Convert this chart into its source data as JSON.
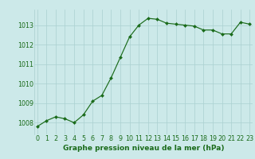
{
  "x": [
    0,
    1,
    2,
    3,
    4,
    5,
    6,
    7,
    8,
    9,
    10,
    11,
    12,
    13,
    14,
    15,
    16,
    17,
    18,
    19,
    20,
    21,
    22,
    23
  ],
  "y": [
    1007.8,
    1008.1,
    1008.3,
    1008.2,
    1008.0,
    1008.4,
    1009.1,
    1009.4,
    1010.3,
    1011.35,
    1012.4,
    1013.0,
    1013.35,
    1013.3,
    1013.1,
    1013.05,
    1013.0,
    1012.95,
    1012.75,
    1012.75,
    1012.55,
    1012.55,
    1013.15,
    1013.05
  ],
  "line_color": "#1a6b1a",
  "marker": "D",
  "marker_size": 2.0,
  "bg_color": "#cce9e9",
  "grid_color": "#aad0d0",
  "xlabel": "Graphe pression niveau de la mer (hPa)",
  "xlabel_color": "#1a6b1a",
  "xlabel_fontsize": 6.5,
  "tick_label_color": "#1a6b1a",
  "tick_fontsize": 5.8,
  "yticks": [
    1008,
    1009,
    1010,
    1011,
    1012,
    1013
  ],
  "xticks": [
    0,
    1,
    2,
    3,
    4,
    5,
    6,
    7,
    8,
    9,
    10,
    11,
    12,
    13,
    14,
    15,
    16,
    17,
    18,
    19,
    20,
    21,
    22,
    23
  ],
  "ylim": [
    1007.4,
    1013.8
  ],
  "xlim": [
    -0.3,
    23.3
  ],
  "linewidth": 0.85
}
